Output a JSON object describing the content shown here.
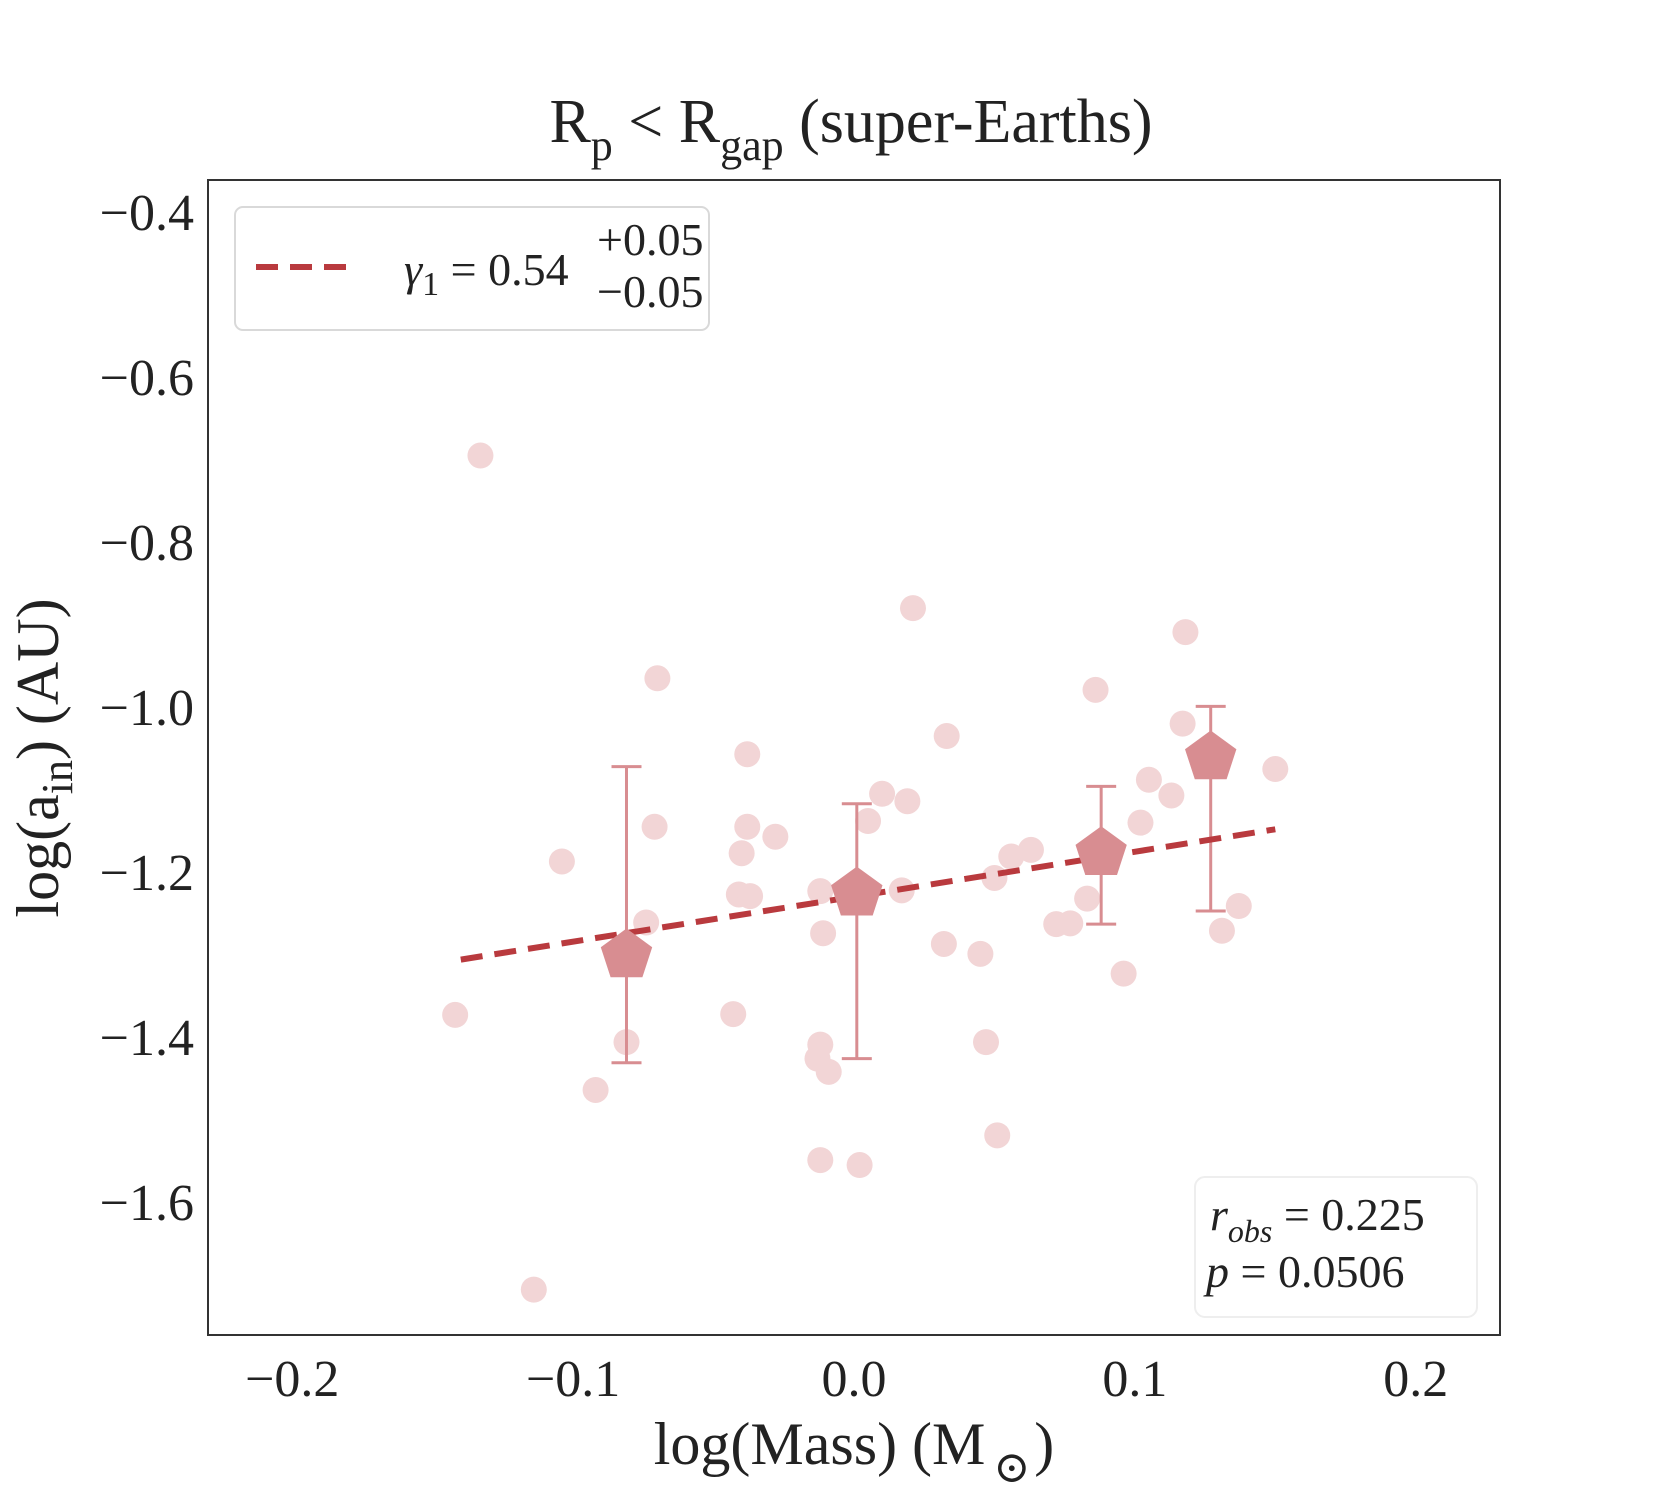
{
  "chart_data": {
    "type": "scatter",
    "title": {
      "main": "R",
      "sub1": "p",
      "op": " < R",
      "sub2": "gap",
      "rest": " (super-Earths)"
    },
    "xlabel": {
      "main": "log(Mass) (M",
      "sub": "⊙",
      "close": ")"
    },
    "ylabel": {
      "main": "log(a",
      "sub": "in",
      "rest": ") (AU)"
    },
    "xlim": [
      -0.23,
      0.23
    ],
    "ylim": [
      -1.76,
      -0.36
    ],
    "xticks": [
      -0.2,
      -0.1,
      0.0,
      0.1,
      0.2
    ],
    "xtick_labels": [
      "−0.2",
      "−0.1",
      "0.0",
      "0.1",
      "0.2"
    ],
    "yticks": [
      -1.6,
      -1.4,
      -1.2,
      -1.0,
      -0.8,
      -0.6,
      -0.4
    ],
    "ytick_labels": [
      "−1.6",
      "−1.4",
      "−1.2",
      "−1.0",
      "−0.8",
      "−0.6",
      "−0.4"
    ],
    "grid": false,
    "scatter_points": [
      {
        "x": -0.133,
        "y": -0.694
      },
      {
        "x": -0.142,
        "y": -1.372
      },
      {
        "x": -0.114,
        "y": -1.705
      },
      {
        "x": -0.104,
        "y": -1.186
      },
      {
        "x": -0.092,
        "y": -1.463
      },
      {
        "x": -0.081,
        "y": -1.405
      },
      {
        "x": -0.074,
        "y": -1.26
      },
      {
        "x": -0.071,
        "y": -1.144
      },
      {
        "x": -0.07,
        "y": -0.964
      },
      {
        "x": -0.043,
        "y": -1.371
      },
      {
        "x": -0.041,
        "y": -1.226
      },
      {
        "x": -0.04,
        "y": -1.176
      },
      {
        "x": -0.038,
        "y": -1.056
      },
      {
        "x": -0.038,
        "y": -1.144
      },
      {
        "x": -0.037,
        "y": -1.228
      },
      {
        "x": -0.028,
        "y": -1.156
      },
      {
        "x": -0.013,
        "y": -1.425
      },
      {
        "x": -0.012,
        "y": -1.408
      },
      {
        "x": -0.012,
        "y": -1.548
      },
      {
        "x": -0.012,
        "y": -1.222
      },
      {
        "x": -0.011,
        "y": -1.273
      },
      {
        "x": -0.009,
        "y": -1.441
      },
      {
        "x": 0.002,
        "y": -1.554
      },
      {
        "x": 0.005,
        "y": -1.137
      },
      {
        "x": 0.01,
        "y": -1.104
      },
      {
        "x": 0.017,
        "y": -1.221
      },
      {
        "x": 0.019,
        "y": -1.113
      },
      {
        "x": 0.021,
        "y": -0.879
      },
      {
        "x": 0.032,
        "y": -1.286
      },
      {
        "x": 0.033,
        "y": -1.034
      },
      {
        "x": 0.045,
        "y": -1.298
      },
      {
        "x": 0.047,
        "y": -1.405
      },
      {
        "x": 0.05,
        "y": -1.206
      },
      {
        "x": 0.051,
        "y": -1.518
      },
      {
        "x": 0.056,
        "y": -1.18
      },
      {
        "x": 0.063,
        "y": -1.172
      },
      {
        "x": 0.072,
        "y": -1.262
      },
      {
        "x": 0.077,
        "y": -1.261
      },
      {
        "x": 0.083,
        "y": -1.231
      },
      {
        "x": 0.086,
        "y": -0.978
      },
      {
        "x": 0.096,
        "y": -1.322
      },
      {
        "x": 0.102,
        "y": -1.139
      },
      {
        "x": 0.105,
        "y": -1.087
      },
      {
        "x": 0.113,
        "y": -1.106
      },
      {
        "x": 0.117,
        "y": -1.019
      },
      {
        "x": 0.118,
        "y": -0.908
      },
      {
        "x": 0.131,
        "y": -1.27
      },
      {
        "x": 0.137,
        "y": -1.24
      },
      {
        "x": 0.15,
        "y": -1.074
      }
    ],
    "binned_means": [
      {
        "x": -0.081,
        "y": -1.3,
        "yerr_low": -1.43,
        "yerr_high": -1.071
      },
      {
        "x": 0.001,
        "y": -1.225,
        "yerr_low": -1.425,
        "yerr_high": -1.116
      },
      {
        "x": 0.088,
        "y": -1.176,
        "yerr_low": -1.262,
        "yerr_high": -1.095
      },
      {
        "x": 0.127,
        "y": -1.06,
        "yerr_low": -1.246,
        "yerr_high": -0.998
      }
    ],
    "fit_line": {
      "x": [
        -0.14,
        0.15
      ],
      "y": [
        -1.305,
        -1.147
      ]
    },
    "legend": {
      "position": "top-left",
      "entries": [
        {
          "symbol": "γ",
          "symbol_sub": "1",
          "eq": " = 0.54",
          "sup": "+0.05",
          "sub": "−0.05"
        }
      ]
    },
    "stats_box": {
      "position": "bottom-right",
      "r_symbol": "r",
      "r_sub": "obs",
      "r_value": " = 0.225",
      "p_symbol": "p",
      "p_value": " = 0.0506"
    },
    "colors": {
      "points": "#f2d5d6",
      "means": "#d88d91",
      "errorbars": "#d88d91",
      "fit": "#b93a3e",
      "axes": "#333333",
      "legend_border": "#d9d9d9"
    }
  }
}
